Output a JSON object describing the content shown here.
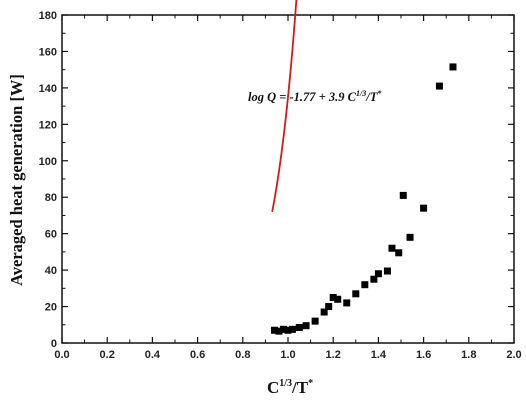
{
  "chart_data": {
    "type": "scatter",
    "title": "",
    "xlabel": {
      "base": "C",
      "sup1": "1/3",
      "mid": "/T",
      "sup2": "*"
    },
    "ylabel": "Averaged heat generation [W]",
    "xlim": [
      0.0,
      2.0
    ],
    "ylim": [
      0,
      180
    ],
    "xticks": [
      0.0,
      0.2,
      0.4,
      0.6,
      0.8,
      1.0,
      1.2,
      1.4,
      1.6,
      1.8,
      2.0
    ],
    "yticks": [
      0,
      20,
      40,
      60,
      80,
      100,
      120,
      140,
      160,
      180
    ],
    "xtick_labels": [
      "0.0",
      "0.2",
      "0.4",
      "0.6",
      "0.8",
      "1.0",
      "1.2",
      "1.4",
      "1.6",
      "1.8",
      "2.0"
    ],
    "ytick_labels": [
      "0",
      "20",
      "40",
      "60",
      "80",
      "100",
      "120",
      "140",
      "160",
      "180"
    ],
    "grid": false,
    "marker_color": "#000000",
    "fit_color": "#d11a1a",
    "series": [
      {
        "marker": "square",
        "points": [
          {
            "x": 0.94,
            "y": 7
          },
          {
            "x": 0.96,
            "y": 6.5
          },
          {
            "x": 0.98,
            "y": 7.5
          },
          {
            "x": 1.0,
            "y": 7
          },
          {
            "x": 1.02,
            "y": 7.5
          },
          {
            "x": 1.05,
            "y": 8.5
          },
          {
            "x": 1.08,
            "y": 9.5
          },
          {
            "x": 1.12,
            "y": 12
          },
          {
            "x": 1.16,
            "y": 17
          },
          {
            "x": 1.18,
            "y": 20
          },
          {
            "x": 1.2,
            "y": 25
          },
          {
            "x": 1.22,
            "y": 24
          },
          {
            "x": 1.26,
            "y": 22
          },
          {
            "x": 1.3,
            "y": 27
          },
          {
            "x": 1.34,
            "y": 32
          },
          {
            "x": 1.38,
            "y": 35
          },
          {
            "x": 1.4,
            "y": 38
          },
          {
            "x": 1.44,
            "y": 39.5
          },
          {
            "x": 1.46,
            "y": 52
          },
          {
            "x": 1.49,
            "y": 49.5
          },
          {
            "x": 1.51,
            "y": 81
          },
          {
            "x": 1.54,
            "y": 58
          },
          {
            "x": 1.6,
            "y": 74
          },
          {
            "x": 1.67,
            "y": 141
          },
          {
            "x": 1.73,
            "y": 151.5
          }
        ]
      }
    ],
    "fit": {
      "equation": {
        "prefix": "log Q = -1.77 + 3.9 C",
        "sup1": "1/3",
        "mid": "/T",
        "sup2": "*"
      },
      "intercept": -1.77,
      "slope": 3.9,
      "x_range": [
        0.93,
        1.735
      ]
    }
  }
}
